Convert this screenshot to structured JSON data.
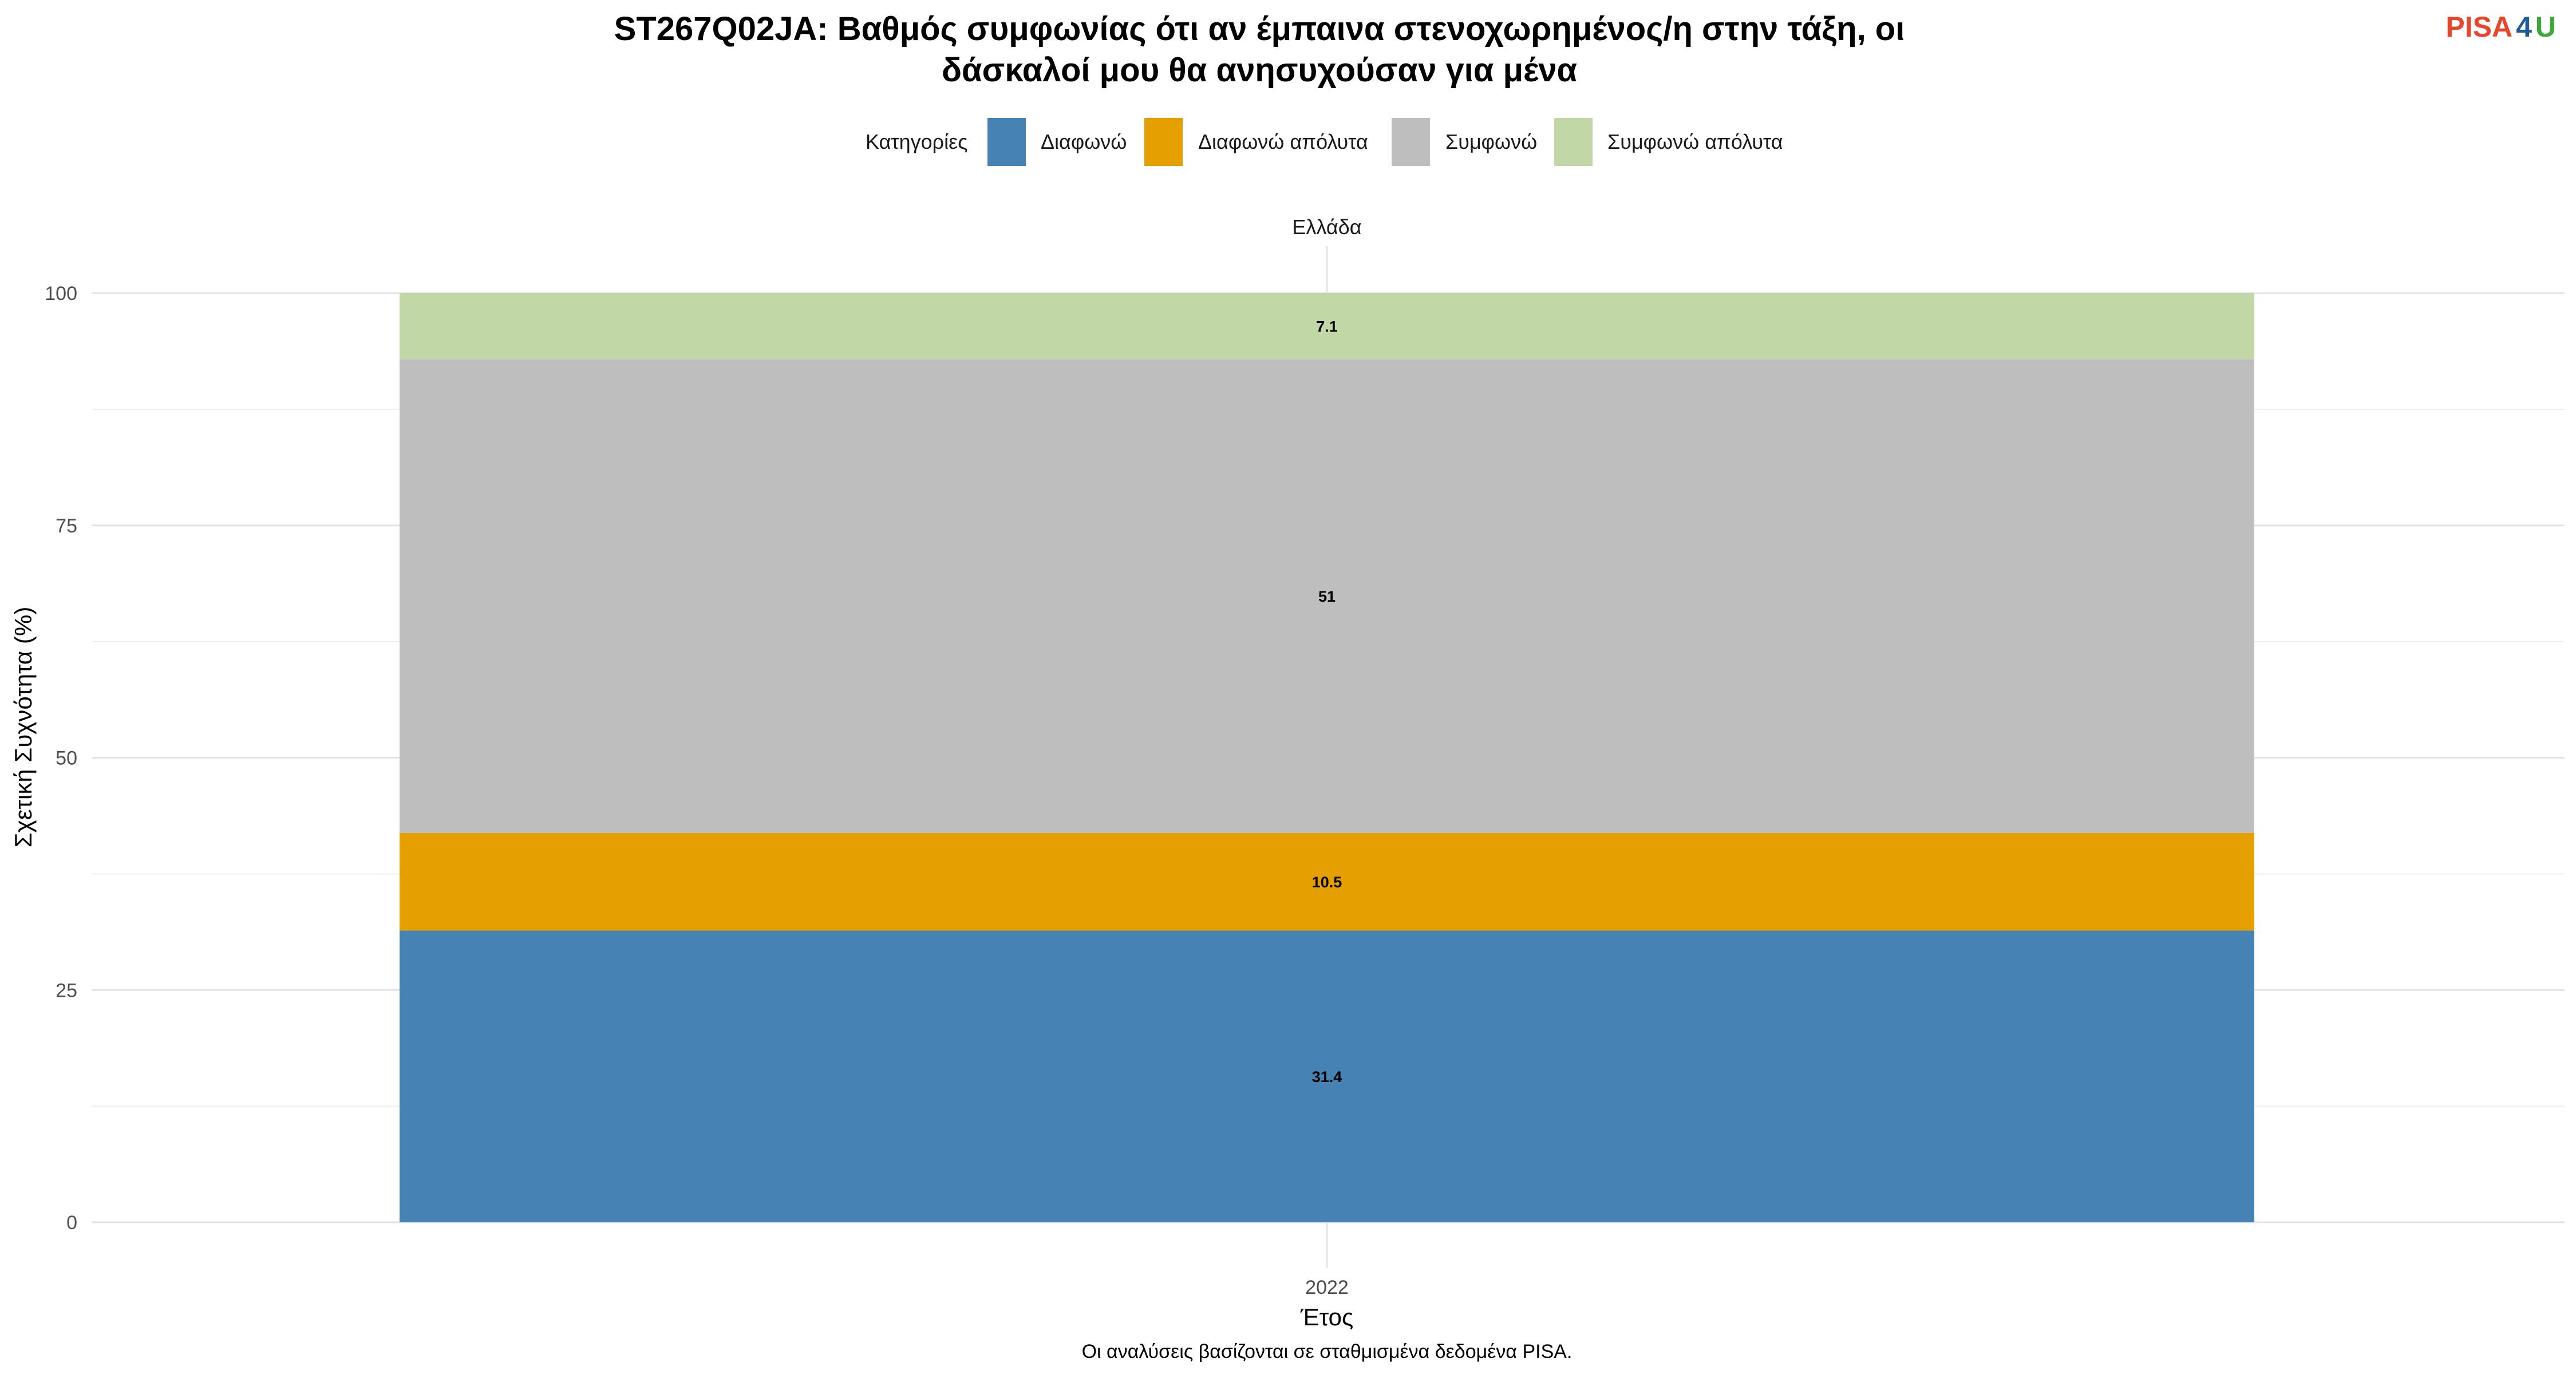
{
  "chart_data": {
    "type": "bar",
    "stacked": true,
    "title_line1": "ST267Q02JA: Βαθμός συμφωνίας ότι αν έμπαινα στενοχωρημένος/η στην τάξη, οι",
    "title_line2": "δάσκαλοί μου θα ανησυχούσαν για μένα",
    "facet_label": "Ελλάδα",
    "categories": [
      "2022"
    ],
    "xlabel": "Έτος",
    "ylabel": "Σχετική Συχνότητα (%)",
    "ylim": [
      0,
      100
    ],
    "yticks": [
      0,
      25,
      50,
      75,
      100
    ],
    "grid": true,
    "legend": {
      "title": "Κατηγορίες",
      "position": "top"
    },
    "series": [
      {
        "name": "Διαφωνώ",
        "values": [
          31.4
        ],
        "label": "31.4",
        "color": "#4682B4"
      },
      {
        "name": "Διαφωνώ απόλυτα",
        "values": [
          10.5
        ],
        "label": "10.5",
        "color": "#E69F00"
      },
      {
        "name": "Συμφωνώ",
        "values": [
          51
        ],
        "label": "51",
        "color": "#BEBEBE"
      },
      {
        "name": "Συμφωνώ απόλυτα",
        "values": [
          7.1
        ],
        "label": "7.1",
        "color": "#C1D7A6"
      }
    ],
    "caption": "Οι αναλύσεις βασίζονται σε σταθμισμένα δεδομένα PISA."
  },
  "logo": {
    "part1": "PISA",
    "part2": "4",
    "part3": "U",
    "color1": "#E8462A",
    "color2": "#1F5B99",
    "color3": "#3AA935"
  }
}
